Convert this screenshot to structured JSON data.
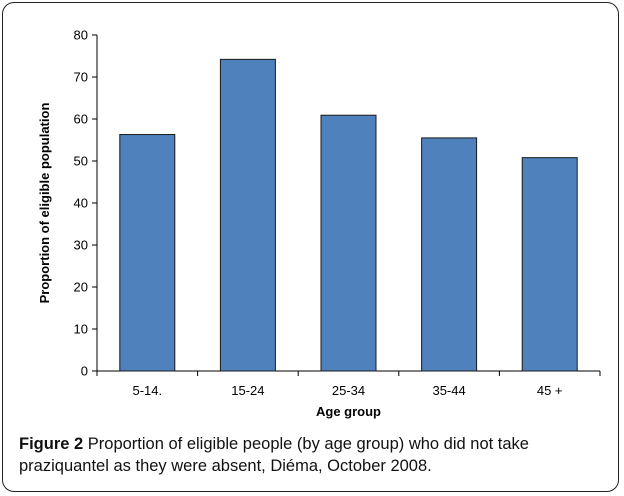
{
  "chart_data": {
    "type": "bar",
    "categories": [
      "5-14.",
      "15-24",
      "25-34",
      "35-44",
      "45 +"
    ],
    "values": [
      56.3,
      74.2,
      60.9,
      55.5,
      50.8
    ],
    "xlabel": "Age group",
    "ylabel": "Proportion of eligible population",
    "ylim": [
      0,
      80
    ],
    "yticks": [
      0,
      10,
      20,
      30,
      40,
      50,
      60,
      70,
      80
    ],
    "bar_color": "#4f81bd",
    "bar_edge_color": "#1a1a1a",
    "grid": false,
    "legend": "none"
  },
  "caption": {
    "label": "Figure 2",
    "text": "Proportion of eligible people (by age group) who did not take praziquantel as they were absent, Diéma, October 2008."
  }
}
